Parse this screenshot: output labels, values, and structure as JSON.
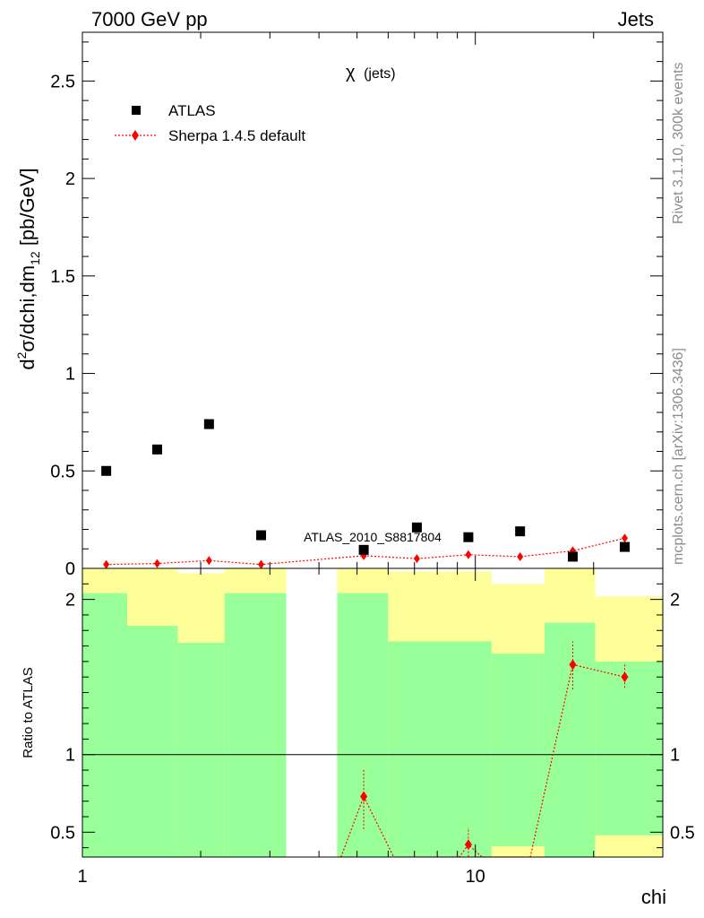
{
  "header": {
    "left": "7000 GeV pp",
    "right": "Jets"
  },
  "side_labels": {
    "rivet": "Rivet 3.1.10,  300k events",
    "mcplots": "mcplots.cern.ch [arXiv:1306.3436]"
  },
  "watermark": "ATLAS_2010_S8817804",
  "colors": {
    "data": "#000000",
    "mc": "#ff0000",
    "band_inner": "#99ff99",
    "band_outer": "#ffff99"
  },
  "chart_data": [
    {
      "type": "scatter",
      "title": "χ",
      "title_suffix": "(jets)",
      "xlabel": "chi",
      "ylabel_parts": {
        "a": "d",
        "sup": "2",
        "b": "σ/dchi,dm",
        "sub": "12",
        "c": " [pb/GeV]"
      },
      "xscale": "log",
      "xlim": [
        1,
        30
      ],
      "ylim": [
        0,
        2.75
      ],
      "yticks": [
        0,
        0.5,
        1,
        1.5,
        2,
        2.5
      ],
      "ytick_labels": [
        "0",
        "0.5",
        "1",
        "1.5",
        "2",
        "2.5"
      ],
      "legend_position": "top-left",
      "series": [
        {
          "name": "ATLAS",
          "marker": "square",
          "x": [
            1.15,
            1.55,
            2.1,
            2.85,
            5.2,
            7.1,
            9.6,
            13.0,
            17.7,
            24.0
          ],
          "y": [
            0.5,
            0.61,
            0.74,
            0.17,
            0.095,
            0.21,
            0.16,
            0.19,
            0.06,
            0.11
          ]
        },
        {
          "name": "Sherpa 1.4.5 default",
          "marker": "diamond",
          "x": [
            1.15,
            1.55,
            2.1,
            2.85,
            5.2,
            7.1,
            9.6,
            13.0,
            17.7,
            24.0
          ],
          "y": [
            0.02,
            0.025,
            0.04,
            0.02,
            0.065,
            0.05,
            0.07,
            0.06,
            0.09,
            0.155
          ]
        }
      ]
    },
    {
      "type": "line",
      "ylabel": "Ratio to ATLAS",
      "xlabel": "chi",
      "xscale": "log",
      "xlim": [
        1,
        30
      ],
      "ylim": [
        0.34,
        2.2
      ],
      "yticks": [
        0.5,
        1,
        2
      ],
      "ytick_labels": [
        "0.5",
        "1",
        "2"
      ],
      "xticks": [
        1,
        10
      ],
      "xtick_labels": [
        "1",
        "10"
      ],
      "reference_line": 1,
      "bins": [
        {
          "lo": 1.0,
          "hi": 1.3,
          "inner": [
            0.34,
            2.04
          ],
          "outer": [
            0.34,
            2.2
          ]
        },
        {
          "lo": 1.3,
          "hi": 1.75,
          "inner": [
            0.34,
            1.83
          ],
          "outer": [
            0.34,
            2.2
          ]
        },
        {
          "lo": 1.75,
          "hi": 2.3,
          "inner": [
            0.34,
            1.72
          ],
          "outer": [
            0.34,
            2.17
          ]
        },
        {
          "lo": 2.3,
          "hi": 3.3,
          "inner": [
            0.34,
            2.04
          ],
          "outer": [
            0.34,
            2.2
          ]
        },
        {
          "lo": 4.45,
          "hi": 6.0,
          "inner": [
            0.34,
            2.04
          ],
          "outer": [
            0.34,
            2.2
          ]
        },
        {
          "lo": 6.0,
          "hi": 8.1,
          "inner": [
            0.34,
            1.73
          ],
          "outer": [
            0.34,
            2.18
          ]
        },
        {
          "lo": 8.1,
          "hi": 11.0,
          "inner": [
            0.34,
            1.73
          ],
          "outer": [
            0.34,
            2.18
          ]
        },
        {
          "lo": 11.0,
          "hi": 15.0,
          "inner": [
            0.41,
            1.65
          ],
          "outer": [
            0.34,
            2.1
          ]
        },
        {
          "lo": 15.0,
          "hi": 20.2,
          "inner": [
            0.34,
            1.85
          ],
          "outer": [
            0.34,
            2.2
          ]
        },
        {
          "lo": 20.2,
          "hi": 30.0,
          "inner": [
            0.48,
            1.6
          ],
          "outer": [
            0.34,
            2.02
          ]
        }
      ],
      "ratio_points": {
        "x": [
          5.2,
          9.6,
          17.7,
          24.0
        ],
        "y": [
          0.73,
          0.42,
          1.58,
          1.5
        ],
        "err_lo": [
          0.52,
          0.32,
          1.42,
          1.43
        ],
        "err_hi": [
          0.9,
          0.53,
          1.73,
          1.58
        ]
      },
      "ratio_line": {
        "x": [
          4.55,
          5.2,
          6.2,
          9.1,
          9.6,
          10.4,
          13.8,
          17.7,
          24.0
        ],
        "y": [
          0.34,
          0.73,
          0.34,
          0.34,
          0.42,
          0.34,
          0.34,
          1.58,
          1.5
        ]
      }
    }
  ]
}
